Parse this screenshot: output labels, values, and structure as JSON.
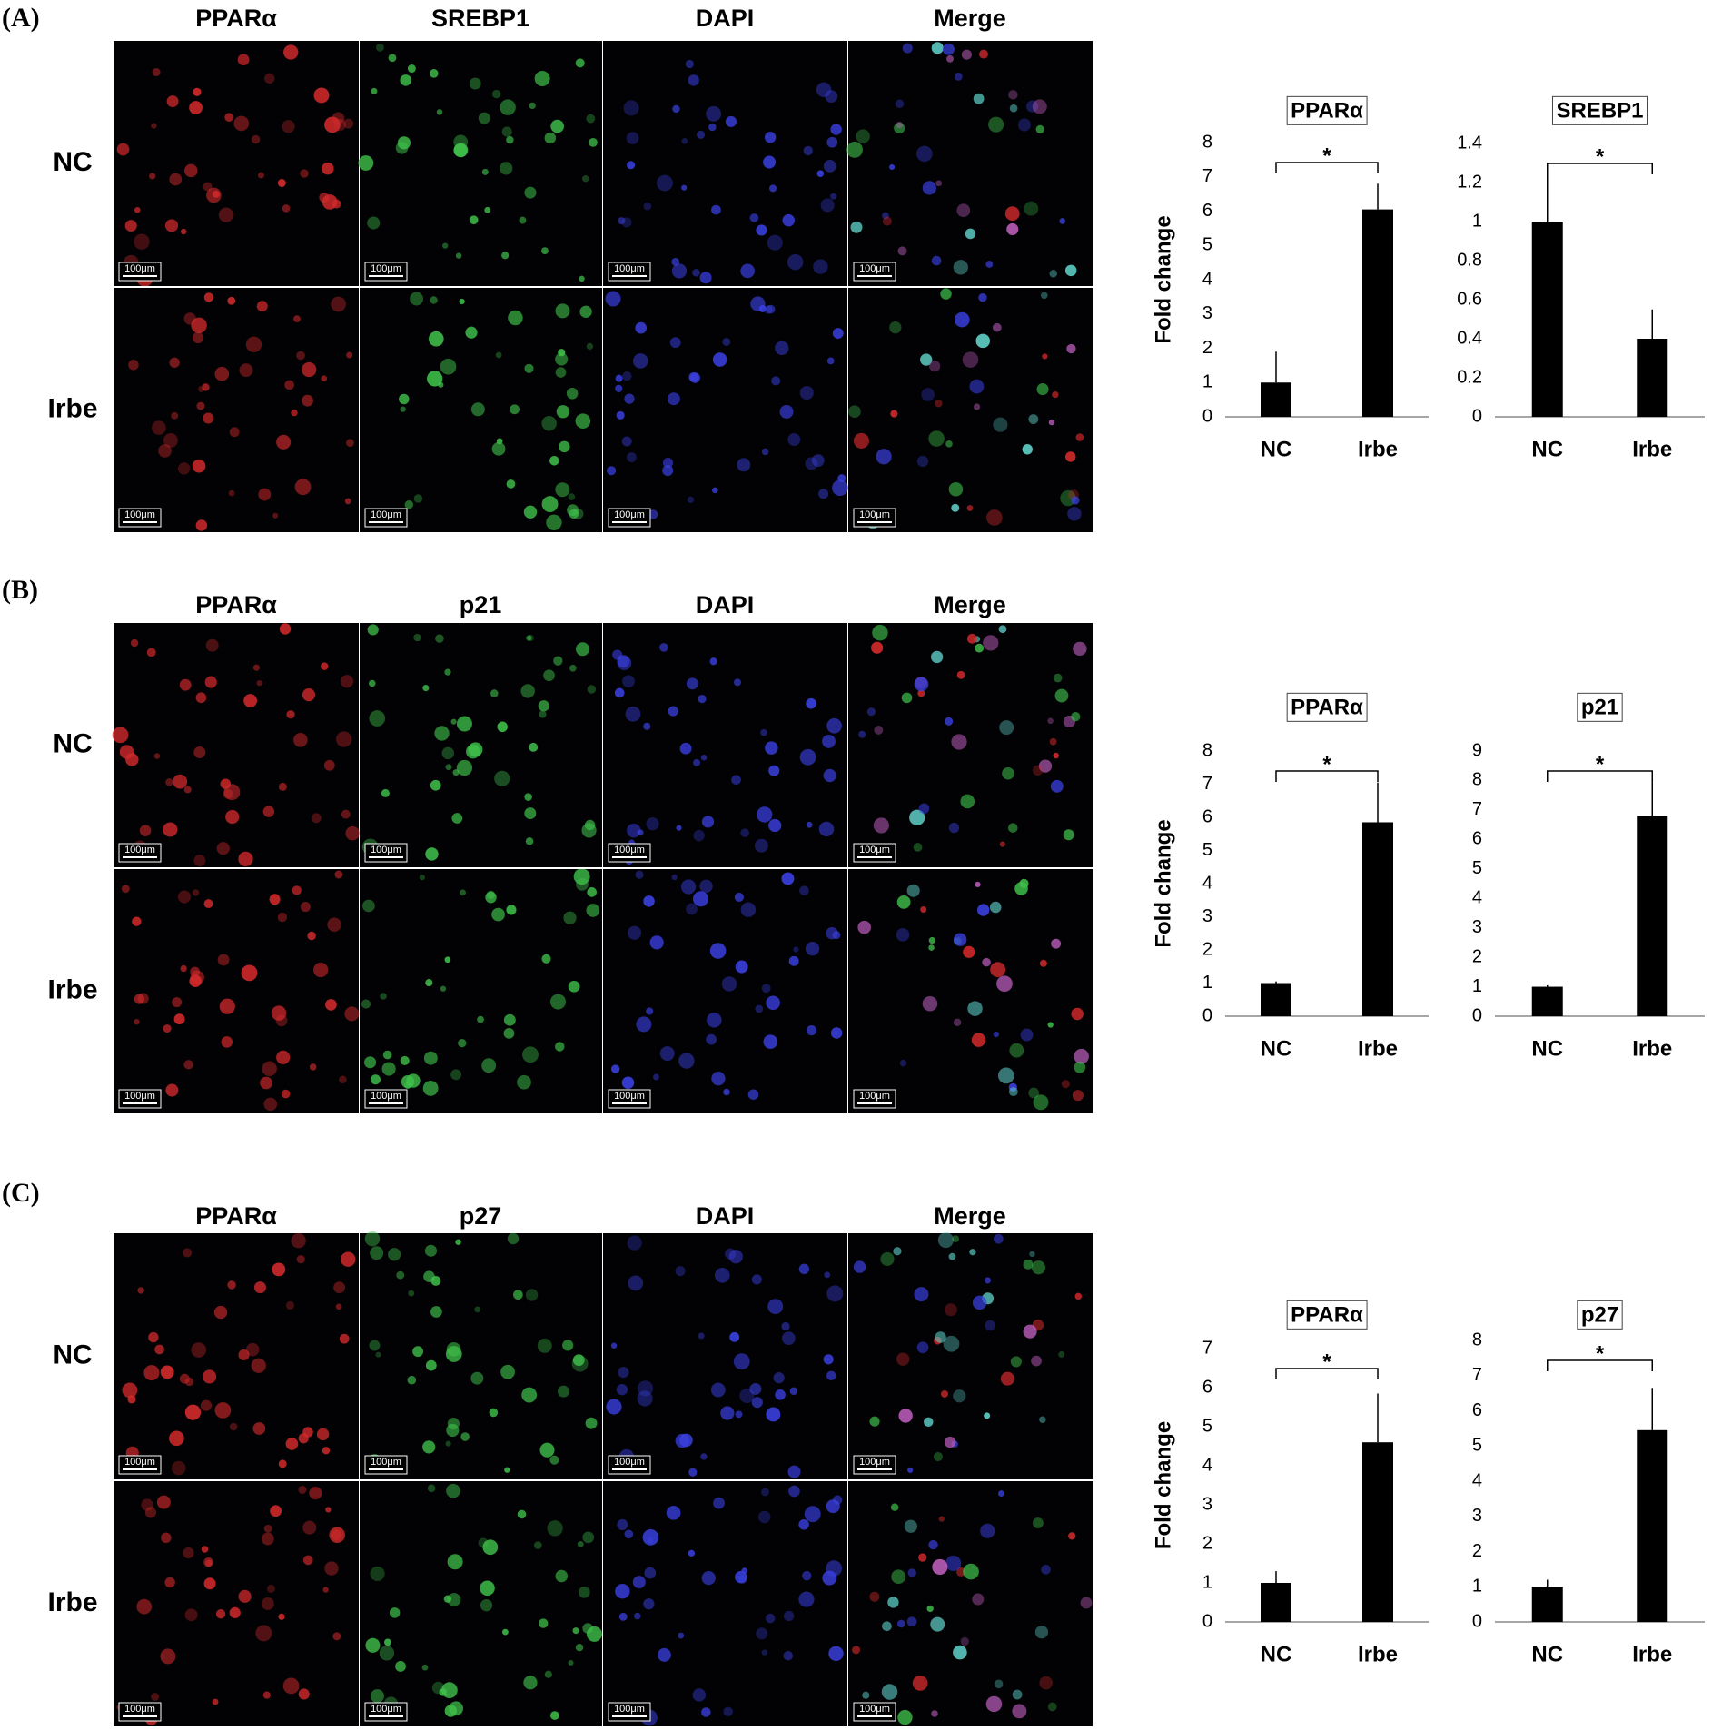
{
  "scale_bar_label": "100μm",
  "panels": [
    {
      "label": "(A)",
      "columns": [
        "PPARα",
        "SREBP1",
        "DAPI",
        "Merge"
      ],
      "rows": [
        "NC",
        "Irbe"
      ]
    },
    {
      "label": "(B)",
      "columns": [
        "PPARα",
        "p21",
        "DAPI",
        "Merge"
      ],
      "rows": [
        "NC",
        "Irbe"
      ]
    },
    {
      "label": "(C)",
      "columns": [
        "PPARα",
        "p27",
        "DAPI",
        "Merge"
      ],
      "rows": [
        "NC",
        "Irbe"
      ]
    }
  ],
  "chart_data": [
    {
      "type": "bar",
      "title": "PPARα",
      "ylabel": "Fold change",
      "categories": [
        "NC",
        "Irbe"
      ],
      "values": [
        1,
        6.05
      ],
      "errors": [
        0.9,
        0.75
      ],
      "color": "#000000",
      "ylim": [
        0,
        8
      ],
      "yticks": [
        0,
        1,
        2,
        3,
        4,
        5,
        6,
        7,
        8
      ],
      "annotation": "*"
    },
    {
      "type": "bar",
      "title": "SREBP1",
      "categories": [
        "NC",
        "Irbe"
      ],
      "values": [
        1,
        0.4
      ],
      "errors": [
        0.25,
        0.15
      ],
      "color": "#000000",
      "ylim": [
        0,
        1.4
      ],
      "yticks": [
        0,
        0.2,
        0.4,
        0.6,
        0.8,
        1,
        1.2,
        1.4
      ],
      "annotation": "*"
    },
    {
      "type": "bar",
      "title": "PPARα",
      "ylabel": "Fold change",
      "categories": [
        "NC",
        "Irbe"
      ],
      "values": [
        1,
        5.85
      ],
      "errors": [
        0.05,
        1.2
      ],
      "color": "#000000",
      "ylim": [
        0,
        8
      ],
      "yticks": [
        0,
        1,
        2,
        3,
        4,
        5,
        6,
        7,
        8
      ],
      "annotation": "*"
    },
    {
      "type": "bar",
      "title": "p21",
      "categories": [
        "NC",
        "Irbe"
      ],
      "values": [
        1,
        6.8
      ],
      "errors": [
        0.05,
        1.15
      ],
      "color": "#000000",
      "ylim": [
        0,
        9
      ],
      "yticks": [
        0,
        1,
        2,
        3,
        4,
        5,
        6,
        7,
        8,
        9
      ],
      "annotation": "*"
    },
    {
      "type": "bar",
      "title": "PPARα",
      "ylabel": "Fold change",
      "categories": [
        "NC",
        "Irbe"
      ],
      "values": [
        1,
        4.6
      ],
      "errors": [
        0.3,
        1.25
      ],
      "color": "#000000",
      "ylim": [
        0,
        7
      ],
      "yticks": [
        0,
        1,
        2,
        3,
        4,
        5,
        6,
        7
      ],
      "annotation": "*"
    },
    {
      "type": "bar",
      "title": "p27",
      "categories": [
        "NC",
        "Irbe"
      ],
      "values": [
        1,
        5.45
      ],
      "errors": [
        0.2,
        1.2
      ],
      "color": "#000000",
      "ylim": [
        0,
        8
      ],
      "yticks": [
        0,
        1,
        2,
        3,
        4,
        5,
        6,
        7,
        8
      ],
      "annotation": "*"
    }
  ]
}
